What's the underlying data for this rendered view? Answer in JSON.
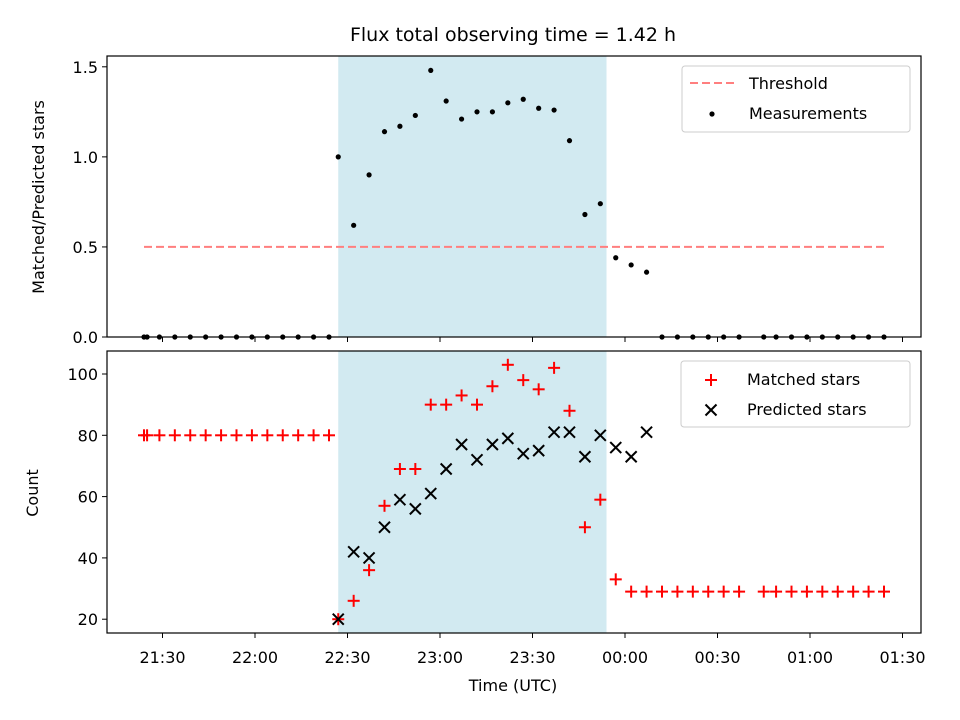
{
  "figure": {
    "title": "Flux total observing time = 1.42 h",
    "xlabel": "Time (UTC)"
  },
  "colors": {
    "shade": "#add8e6",
    "threshold": "#ff7f7f",
    "measurement": "#000000",
    "matched": "#ff0000",
    "predicted": "#000000"
  },
  "chart_data": [
    {
      "type": "scatter",
      "ylabel": "Matched/Predicted stars",
      "xlim": [
        "21:12",
        "01:36"
      ],
      "ylim": [
        0,
        1.56
      ],
      "y_ticks": [
        0.0,
        0.5,
        1.0,
        1.5
      ],
      "y_tick_labels": [
        "0.0",
        "0.5",
        "1.0",
        "1.5"
      ],
      "x_ticks": [
        "21:30",
        "22:00",
        "22:30",
        "23:00",
        "23:30",
        "00:00",
        "00:30",
        "01:00",
        "01:30"
      ],
      "shaded_span": [
        "22:27",
        "23:54"
      ],
      "legend_position": "upper right",
      "legend": [
        {
          "label": "Threshold",
          "marker": "dashed-line"
        },
        {
          "label": "Measurements",
          "marker": "dot"
        }
      ],
      "threshold": {
        "y": 0.5,
        "x_start": "21:24",
        "x_end": "01:24"
      },
      "measurements": {
        "x": [
          "21:24",
          "21:25",
          "21:29",
          "21:34",
          "21:39",
          "21:44",
          "21:49",
          "21:54",
          "21:59",
          "22:04",
          "22:09",
          "22:14",
          "22:19",
          "22:24",
          "22:27",
          "22:32",
          "22:37",
          "22:42",
          "22:47",
          "22:52",
          "22:57",
          "23:02",
          "23:07",
          "23:12",
          "23:17",
          "23:22",
          "23:27",
          "23:32",
          "23:37",
          "23:42",
          "23:47",
          "23:52",
          "23:57",
          "00:02",
          "00:07",
          "00:12",
          "00:17",
          "00:22",
          "00:27",
          "00:32",
          "00:37",
          "00:45",
          "00:49",
          "00:54",
          "00:59",
          "01:04",
          "01:09",
          "01:14",
          "01:19",
          "01:24"
        ],
        "y": [
          0,
          0,
          0,
          0,
          0,
          0,
          0,
          0,
          0,
          0,
          0,
          0,
          0,
          0,
          1.0,
          0.62,
          0.9,
          1.14,
          1.17,
          1.23,
          1.48,
          1.31,
          1.21,
          1.25,
          1.25,
          1.3,
          1.32,
          1.27,
          1.26,
          1.09,
          0.68,
          0.74,
          0.44,
          0.4,
          0.36,
          0,
          0,
          0,
          0,
          0,
          0,
          0,
          0,
          0,
          0,
          0,
          0,
          0,
          0,
          0
        ]
      }
    },
    {
      "type": "scatter",
      "ylabel": "Count",
      "xlim": [
        "21:12",
        "01:36"
      ],
      "ylim": [
        15.5,
        107.5
      ],
      "y_ticks": [
        20,
        40,
        60,
        80,
        100
      ],
      "y_tick_labels": [
        "20",
        "40",
        "60",
        "80",
        "100"
      ],
      "x_ticks": [
        "21:30",
        "22:00",
        "22:30",
        "23:00",
        "23:30",
        "00:00",
        "00:30",
        "01:00",
        "01:30"
      ],
      "x_tick_labels": [
        "21:30",
        "22:00",
        "22:30",
        "23:00",
        "23:30",
        "00:00",
        "00:30",
        "01:00",
        "01:30"
      ],
      "shaded_span": [
        "22:27",
        "23:54"
      ],
      "legend_position": "upper right",
      "legend": [
        {
          "label": "Matched stars",
          "marker": "plus"
        },
        {
          "label": "Predicted stars",
          "marker": "x"
        }
      ],
      "series": [
        {
          "name": "Matched stars",
          "marker": "plus",
          "x": [
            "21:24",
            "21:25",
            "21:29",
            "21:34",
            "21:39",
            "21:44",
            "21:49",
            "21:54",
            "21:59",
            "22:04",
            "22:09",
            "22:14",
            "22:19",
            "22:24",
            "22:27",
            "22:32",
            "22:37",
            "22:42",
            "22:47",
            "22:52",
            "22:57",
            "23:02",
            "23:07",
            "23:12",
            "23:17",
            "23:22",
            "23:27",
            "23:32",
            "23:37",
            "23:42",
            "23:47",
            "23:52",
            "23:57",
            "00:02",
            "00:07",
            "00:12",
            "00:17",
            "00:22",
            "00:27",
            "00:32",
            "00:37",
            "00:45",
            "00:49",
            "00:54",
            "00:59",
            "01:04",
            "01:09",
            "01:14",
            "01:19",
            "01:24"
          ],
          "y": [
            80,
            80,
            80,
            80,
            80,
            80,
            80,
            80,
            80,
            80,
            80,
            80,
            80,
            80,
            20,
            26,
            36,
            57,
            69,
            69,
            90,
            90,
            93,
            90,
            96,
            103,
            98,
            95,
            102,
            88,
            50,
            59,
            33,
            29,
            29,
            29,
            29,
            29,
            29,
            29,
            29,
            29,
            29,
            29,
            29,
            29,
            29,
            29,
            29,
            29
          ]
        },
        {
          "name": "Predicted stars",
          "marker": "x",
          "x": [
            "22:27",
            "22:32",
            "22:37",
            "22:42",
            "22:47",
            "22:52",
            "22:57",
            "23:02",
            "23:07",
            "23:12",
            "23:17",
            "23:22",
            "23:27",
            "23:32",
            "23:37",
            "23:42",
            "23:47",
            "23:52",
            "23:57",
            "00:02",
            "00:07"
          ],
          "y": [
            20,
            42,
            40,
            50,
            59,
            56,
            61,
            69,
            77,
            72,
            77,
            79,
            74,
            75,
            81,
            81,
            73,
            80,
            76,
            73,
            81
          ]
        }
      ]
    }
  ]
}
